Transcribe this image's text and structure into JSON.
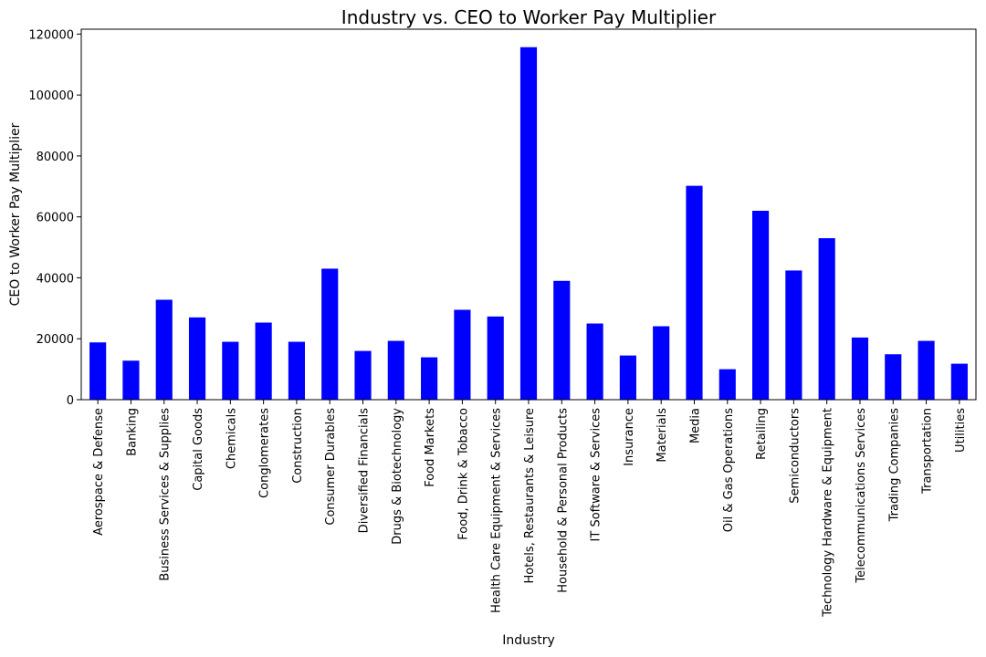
{
  "chart_data": {
    "type": "bar",
    "title": "Industry vs. CEO to Worker Pay Multiplier",
    "xlabel": "Industry",
    "ylabel": "CEO to Worker Pay Multiplier",
    "ylim": [
      0,
      121600
    ],
    "yticks": [
      0,
      20000,
      40000,
      60000,
      80000,
      100000,
      120000
    ],
    "bar_color": "#0000ff",
    "grid": false,
    "categories": [
      "Aerospace & Defense",
      "Banking",
      "Business Services & Supplies",
      "Capital Goods",
      "Chemicals",
      "Conglomerates",
      "Construction",
      "Consumer Durables",
      "Diversified Financials",
      "Drugs & Biotechnology",
      "Food Markets",
      "Food, Drink & Tobacco",
      "Health Care Equipment & Services",
      "Hotels, Restaurants & Leisure",
      "Household & Personal Products",
      "IT Software & Services",
      "Insurance",
      "Materials",
      "Media",
      "Oil & Gas Operations",
      "Retailing",
      "Semiconductors",
      "Technology Hardware & Equipment",
      "Telecommunications Services",
      "Trading Companies",
      "Transportation",
      "Utilities"
    ],
    "values": [
      18800,
      12800,
      32800,
      27000,
      19000,
      25300,
      19000,
      43000,
      16000,
      19300,
      13900,
      29500,
      27300,
      115700,
      39000,
      25000,
      14500,
      24100,
      70200,
      10000,
      62000,
      42400,
      53000,
      20400,
      14900,
      19300,
      11800
    ]
  }
}
